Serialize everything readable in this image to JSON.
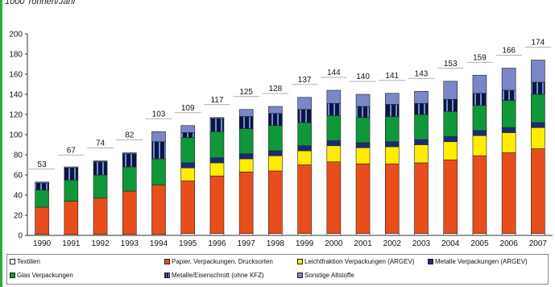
{
  "unit_label": "1000 Tonnen/Jahr",
  "chart_data": {
    "type": "bar",
    "stacked": true,
    "ylim": [
      0,
      200
    ],
    "yticks": [
      0,
      20,
      40,
      60,
      80,
      100,
      120,
      140,
      160,
      180,
      200
    ],
    "grid": false,
    "legend_position": "bottom",
    "categories": [
      "1990",
      "1991",
      "1992",
      "1993",
      "1994",
      "1995",
      "1996",
      "1997",
      "1998",
      "1999",
      "2000",
      "2001",
      "2002",
      "2003",
      "2004",
      "2005",
      "2006",
      "2007"
    ],
    "totals": [
      53,
      67,
      74,
      82,
      103,
      109,
      117,
      125,
      128,
      137,
      144,
      140,
      141,
      143,
      153,
      159,
      166,
      174
    ],
    "series": [
      {
        "name": "Textilien",
        "color": "#ffffff",
        "values": [
          1,
          1,
          1,
          1,
          1,
          2,
          2,
          2,
          2,
          2,
          2,
          2,
          2,
          2,
          2,
          2,
          2,
          2
        ]
      },
      {
        "name": "Papier, Verpackungen, Drucksorten",
        "color": "#e84e1b",
        "values": [
          27,
          33,
          36,
          43,
          49,
          52,
          57,
          61,
          62,
          68,
          71,
          69,
          69,
          70,
          73,
          77,
          80,
          84
        ]
      },
      {
        "name": "Leichtfraktion Verpackungen (ARGEV)",
        "color": "#ffed00",
        "values": [
          0,
          0,
          0,
          0,
          0,
          13,
          13,
          13,
          15,
          14,
          16,
          16,
          17,
          18,
          18,
          20,
          20,
          21
        ]
      },
      {
        "name": "Metalle Verpackungen (ARGEV)",
        "color": "#1a2a7a",
        "values": [
          0,
          0,
          0,
          0,
          0,
          5,
          5,
          5,
          5,
          5,
          5,
          5,
          5,
          5,
          5,
          5,
          5,
          5
        ]
      },
      {
        "name": "Glas Verpackungen",
        "color": "#10973a",
        "values": [
          17,
          21,
          23,
          24,
          26,
          25,
          26,
          25,
          25,
          23,
          25,
          25,
          25,
          25,
          25,
          25,
          27,
          28
        ]
      },
      {
        "name": "Metalle/Eisenschrott (ohne KFZ)",
        "color": "#0d1440",
        "values": [
          7,
          12,
          13,
          13,
          17,
          5,
          13,
          12,
          12,
          13,
          12,
          11,
          12,
          11,
          12,
          12,
          10,
          12
        ]
      },
      {
        "name": "Sonstige Altstoffe",
        "color": "#7a86c6",
        "values": [
          1,
          1,
          1,
          1,
          10,
          7,
          1,
          7,
          7,
          12,
          13,
          12,
          11,
          12,
          18,
          18,
          22,
          22
        ]
      }
    ]
  },
  "legend": {
    "textilien": "Textilien",
    "papier": "Papier, Verpackungen, Drucksorten",
    "leicht": "Leichtfraktion Verpackungen (ARGEV)",
    "metalle_verp": "Metalle Verpackungen (ARGEV)",
    "glas": "Glas Verpackungen",
    "eisenschrott": "Metalle/Eisenschrott (ohne KFZ)",
    "sonstige": "Sonstige Altstoffe"
  }
}
